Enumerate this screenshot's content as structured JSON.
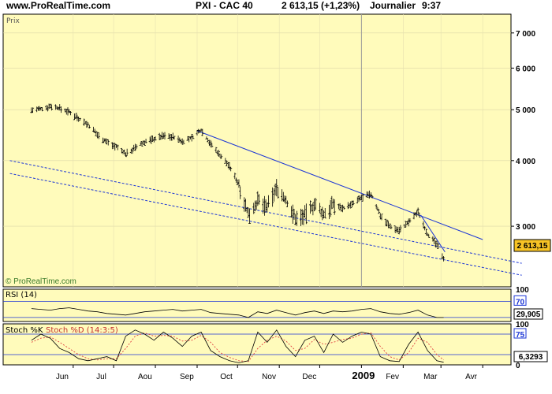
{
  "header": {
    "site": "www.ProRealTime.com",
    "instrument": "PXI - CAC 40",
    "last_value": "2 613,15 (+1,23%)",
    "period": "Journalier",
    "time": "9:37"
  },
  "colors": {
    "background": "#fffbbb",
    "price_bars": "#000000",
    "trendline": "#1b35d6",
    "channel": "#1b35d6",
    "rsi_line": "#000000",
    "stoch_k": "#000000",
    "stoch_d": "#e04040",
    "value_box": "#f7c325"
  },
  "chart_data": [
    {
      "type": "line",
      "panel": "price",
      "label": "Prix",
      "watermark": "© ProRealTime.com",
      "y_scale": "log",
      "ylim": [
        2300,
        7600
      ],
      "y_ticks": [
        "7 000",
        "6 000",
        "5 000",
        "4 000",
        "3 000"
      ],
      "y_tick_values": [
        7000,
        6000,
        5000,
        4000,
        3000
      ],
      "current_value_label": "2 613,15",
      "x_ticks": [
        "Jun",
        "Jul",
        "Aou",
        "Sep",
        "Oct",
        "Nov",
        "Dec",
        "2009",
        "Fev",
        "Mar",
        "Avr"
      ],
      "series": [
        {
          "name": "",
          "style": "ohlc-bars",
          "x": [
            "2008-05-01",
            "2008-05-08",
            "2008-05-15",
            "2008-05-22",
            "2008-05-29",
            "2008-06-05",
            "2008-06-12",
            "2008-06-19",
            "2008-06-26",
            "2008-07-03",
            "2008-07-10",
            "2008-07-17",
            "2008-07-24",
            "2008-07-31",
            "2008-08-07",
            "2008-08-14",
            "2008-08-21",
            "2008-08-28",
            "2008-09-04",
            "2008-09-11",
            "2008-09-18",
            "2008-09-25",
            "2008-10-02",
            "2008-10-09",
            "2008-10-16",
            "2008-10-23",
            "2008-10-30",
            "2008-11-06",
            "2008-11-13",
            "2008-11-20",
            "2008-11-27",
            "2008-12-04",
            "2008-12-11",
            "2008-12-18",
            "2008-12-25",
            "2009-01-01",
            "2009-01-08",
            "2009-01-15",
            "2009-01-22",
            "2009-01-29",
            "2009-02-05",
            "2009-02-12",
            "2009-02-19",
            "2009-02-26",
            "2009-03-03"
          ],
          "values": [
            4990,
            5010,
            5080,
            5030,
            4950,
            4820,
            4680,
            4480,
            4340,
            4250,
            4120,
            4230,
            4340,
            4400,
            4460,
            4440,
            4350,
            4420,
            4580,
            4300,
            4100,
            3900,
            3600,
            3150,
            3350,
            3250,
            3550,
            3350,
            3100,
            3150,
            3300,
            3150,
            3300,
            3250,
            3300,
            3400,
            3450,
            3150,
            3000,
            2950,
            3050,
            3200,
            2900,
            2760,
            2613
          ]
        }
      ],
      "lines": [
        {
          "name": "trendline",
          "style": "solid",
          "x": [
            "2008-09-01",
            "2009-04-01"
          ],
          "y": [
            4560,
            2830
          ]
        },
        {
          "name": "short-trendline",
          "style": "solid",
          "x": [
            "2009-02-14",
            "2009-03-04"
          ],
          "y": [
            3150,
            2680
          ]
        },
        {
          "name": "channel-upper",
          "style": "dashed",
          "x": [
            "2008-04-15",
            "2009-04-30"
          ],
          "y": [
            4000,
            2550
          ]
        },
        {
          "name": "channel-lower",
          "style": "dashed",
          "x": [
            "2008-04-15",
            "2009-04-30"
          ],
          "y": [
            3780,
            2420
          ]
        }
      ]
    },
    {
      "type": "line",
      "panel": "rsi",
      "label": "RSI (14)",
      "ylim": [
        20,
        100
      ],
      "y_ticks": [
        "100",
        "70"
      ],
      "y_tick_values": [
        100,
        70
      ],
      "levels": [
        70,
        30
      ],
      "current_value_label": "29,905",
      "series": [
        {
          "name": "",
          "values": [
            52,
            50,
            48,
            52,
            54,
            50,
            46,
            44,
            40,
            38,
            36,
            40,
            44,
            46,
            48,
            50,
            46,
            48,
            50,
            42,
            40,
            38,
            36,
            30,
            44,
            40,
            48,
            42,
            36,
            42,
            46,
            40,
            46,
            44,
            46,
            50,
            52,
            44,
            40,
            38,
            42,
            48,
            36,
            30,
            29.9
          ]
        }
      ]
    },
    {
      "type": "line",
      "panel": "stochastic",
      "label_k": "Stoch %K",
      "label_d": "Stoch %D (14:3:5)",
      "ylim": [
        0,
        100
      ],
      "y_ticks": [
        "100",
        "75",
        "0"
      ],
      "y_tick_values": [
        100,
        75,
        0
      ],
      "levels": [
        75,
        25
      ],
      "current_value_label": "6,3293",
      "series": [
        {
          "name": "Stoch %K",
          "values": [
            60,
            75,
            65,
            40,
            30,
            15,
            10,
            15,
            20,
            10,
            70,
            85,
            75,
            60,
            80,
            65,
            45,
            70,
            80,
            35,
            20,
            10,
            5,
            10,
            80,
            55,
            85,
            45,
            20,
            60,
            70,
            30,
            75,
            55,
            70,
            80,
            75,
            20,
            10,
            8,
            50,
            80,
            35,
            10,
            6.3
          ]
        },
        {
          "name": "Stoch %D (14:3:5)",
          "values": [
            55,
            65,
            68,
            55,
            40,
            25,
            15,
            12,
            15,
            15,
            40,
            70,
            78,
            70,
            72,
            70,
            58,
            60,
            72,
            55,
            30,
            18,
            10,
            8,
            40,
            60,
            70,
            58,
            35,
            40,
            62,
            50,
            55,
            62,
            65,
            75,
            78,
            45,
            20,
            12,
            30,
            65,
            55,
            25,
            12
          ]
        }
      ]
    }
  ]
}
